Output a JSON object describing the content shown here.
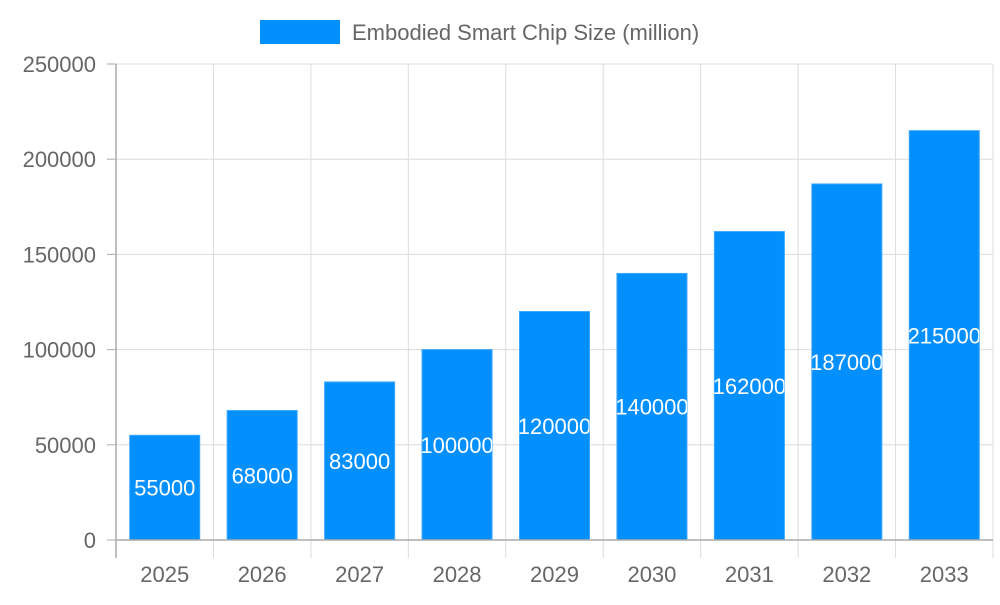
{
  "chart_data": {
    "type": "bar",
    "categories": [
      "2025",
      "2026",
      "2027",
      "2028",
      "2029",
      "2030",
      "2031",
      "2032",
      "2033"
    ],
    "series": [
      {
        "name": "Embodied Smart Chip Size (million)",
        "values": [
          55000,
          68000,
          83000,
          100000,
          120000,
          140000,
          162000,
          187000,
          215000
        ],
        "color": "#038ffc"
      }
    ],
    "ylim": [
      0,
      250000
    ],
    "yticks": [
      "0",
      "50000",
      "100000",
      "150000",
      "200000",
      "250000"
    ],
    "grid": true,
    "legend": "top",
    "data_labels": true,
    "xlabel": "",
    "ylabel": ""
  }
}
